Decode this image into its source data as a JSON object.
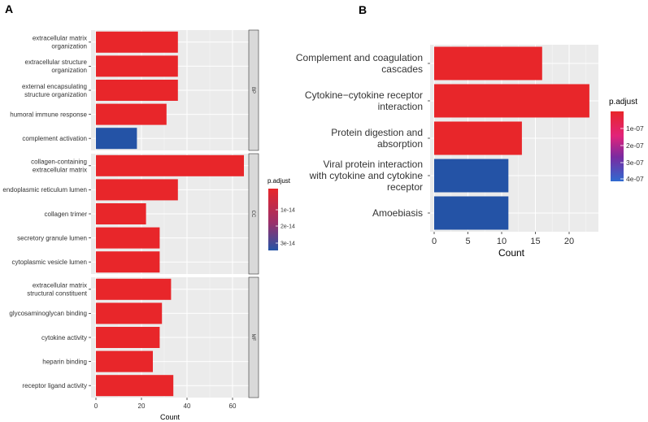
{
  "colors": {
    "red": "#E8262A",
    "blue": "#2453A6",
    "panel_bg": "#ebebeb",
    "strip_bg": "#d9d9d9",
    "grid": "#ffffff"
  },
  "chart_data": [
    {
      "panel": "A",
      "type": "bar",
      "orientation": "horizontal",
      "xlabel": "Count",
      "xlim": [
        0,
        70
      ],
      "xticks": [
        0,
        20,
        40,
        60
      ],
      "legend": {
        "title": "p.adjust",
        "ticks": [
          "1e-14",
          "2e-14",
          "3e-14"
        ],
        "position": "right"
      },
      "facets": [
        {
          "name": "BP",
          "bars": [
            {
              "label": "extracellular matrix\norganization",
              "value": 36,
              "color": "#E8262A"
            },
            {
              "label": "extracellular structure\norganization",
              "value": 36,
              "color": "#E8262A"
            },
            {
              "label": "external encapsulating\nstructure organization",
              "value": 36,
              "color": "#E8262A"
            },
            {
              "label": "humoral immune response",
              "value": 31,
              "color": "#E8262A"
            },
            {
              "label": "complement activation",
              "value": 18,
              "color": "#2453A6"
            }
          ]
        },
        {
          "name": "CC",
          "bars": [
            {
              "label": "collagen-containing\nextracellular matrix",
              "value": 65,
              "color": "#E8262A"
            },
            {
              "label": "endoplasmic reticulum lumen",
              "value": 36,
              "color": "#E8262A"
            },
            {
              "label": "collagen trimer",
              "value": 22,
              "color": "#E8262A"
            },
            {
              "label": "secretory granule lumen",
              "value": 28,
              "color": "#E8262A"
            },
            {
              "label": "cytoplasmic vesicle lumen",
              "value": 28,
              "color": "#E8262A"
            }
          ]
        },
        {
          "name": "MF",
          "bars": [
            {
              "label": "extracellular matrix\nstructural constituent",
              "value": 33,
              "color": "#E8262A"
            },
            {
              "label": "glycosaminoglycan binding",
              "value": 29,
              "color": "#E8262A"
            },
            {
              "label": "cytokine activity",
              "value": 28,
              "color": "#E8262A"
            },
            {
              "label": "heparin binding",
              "value": 25,
              "color": "#E8262A"
            },
            {
              "label": "receptor ligand activity",
              "value": 34,
              "color": "#E8262A"
            }
          ]
        }
      ]
    },
    {
      "panel": "B",
      "type": "bar",
      "orientation": "horizontal",
      "xlabel": "Count",
      "xlim": [
        -1,
        24
      ],
      "xticks": [
        0,
        5,
        10,
        15,
        20
      ],
      "legend": {
        "title": "p.adjust",
        "ticks": [
          "1e-07",
          "2e-07",
          "3e-07",
          "4e-07"
        ],
        "position": "right"
      },
      "bars": [
        {
          "label": "Complement and coagulation\ncascades",
          "value": 16,
          "color": "#E8262A"
        },
        {
          "label": "Cytokine−cytokine receptor\ninteraction",
          "value": 23,
          "color": "#E8262A"
        },
        {
          "label": "Protein digestion and\nabsorption",
          "value": 13,
          "color": "#E8262A"
        },
        {
          "label": "Viral protein interaction\nwith cytokine and cytokine\nreceptor",
          "value": 11,
          "color": "#2453A6"
        },
        {
          "label": "Amoebiasis",
          "value": 11,
          "color": "#2453A6"
        }
      ]
    }
  ]
}
